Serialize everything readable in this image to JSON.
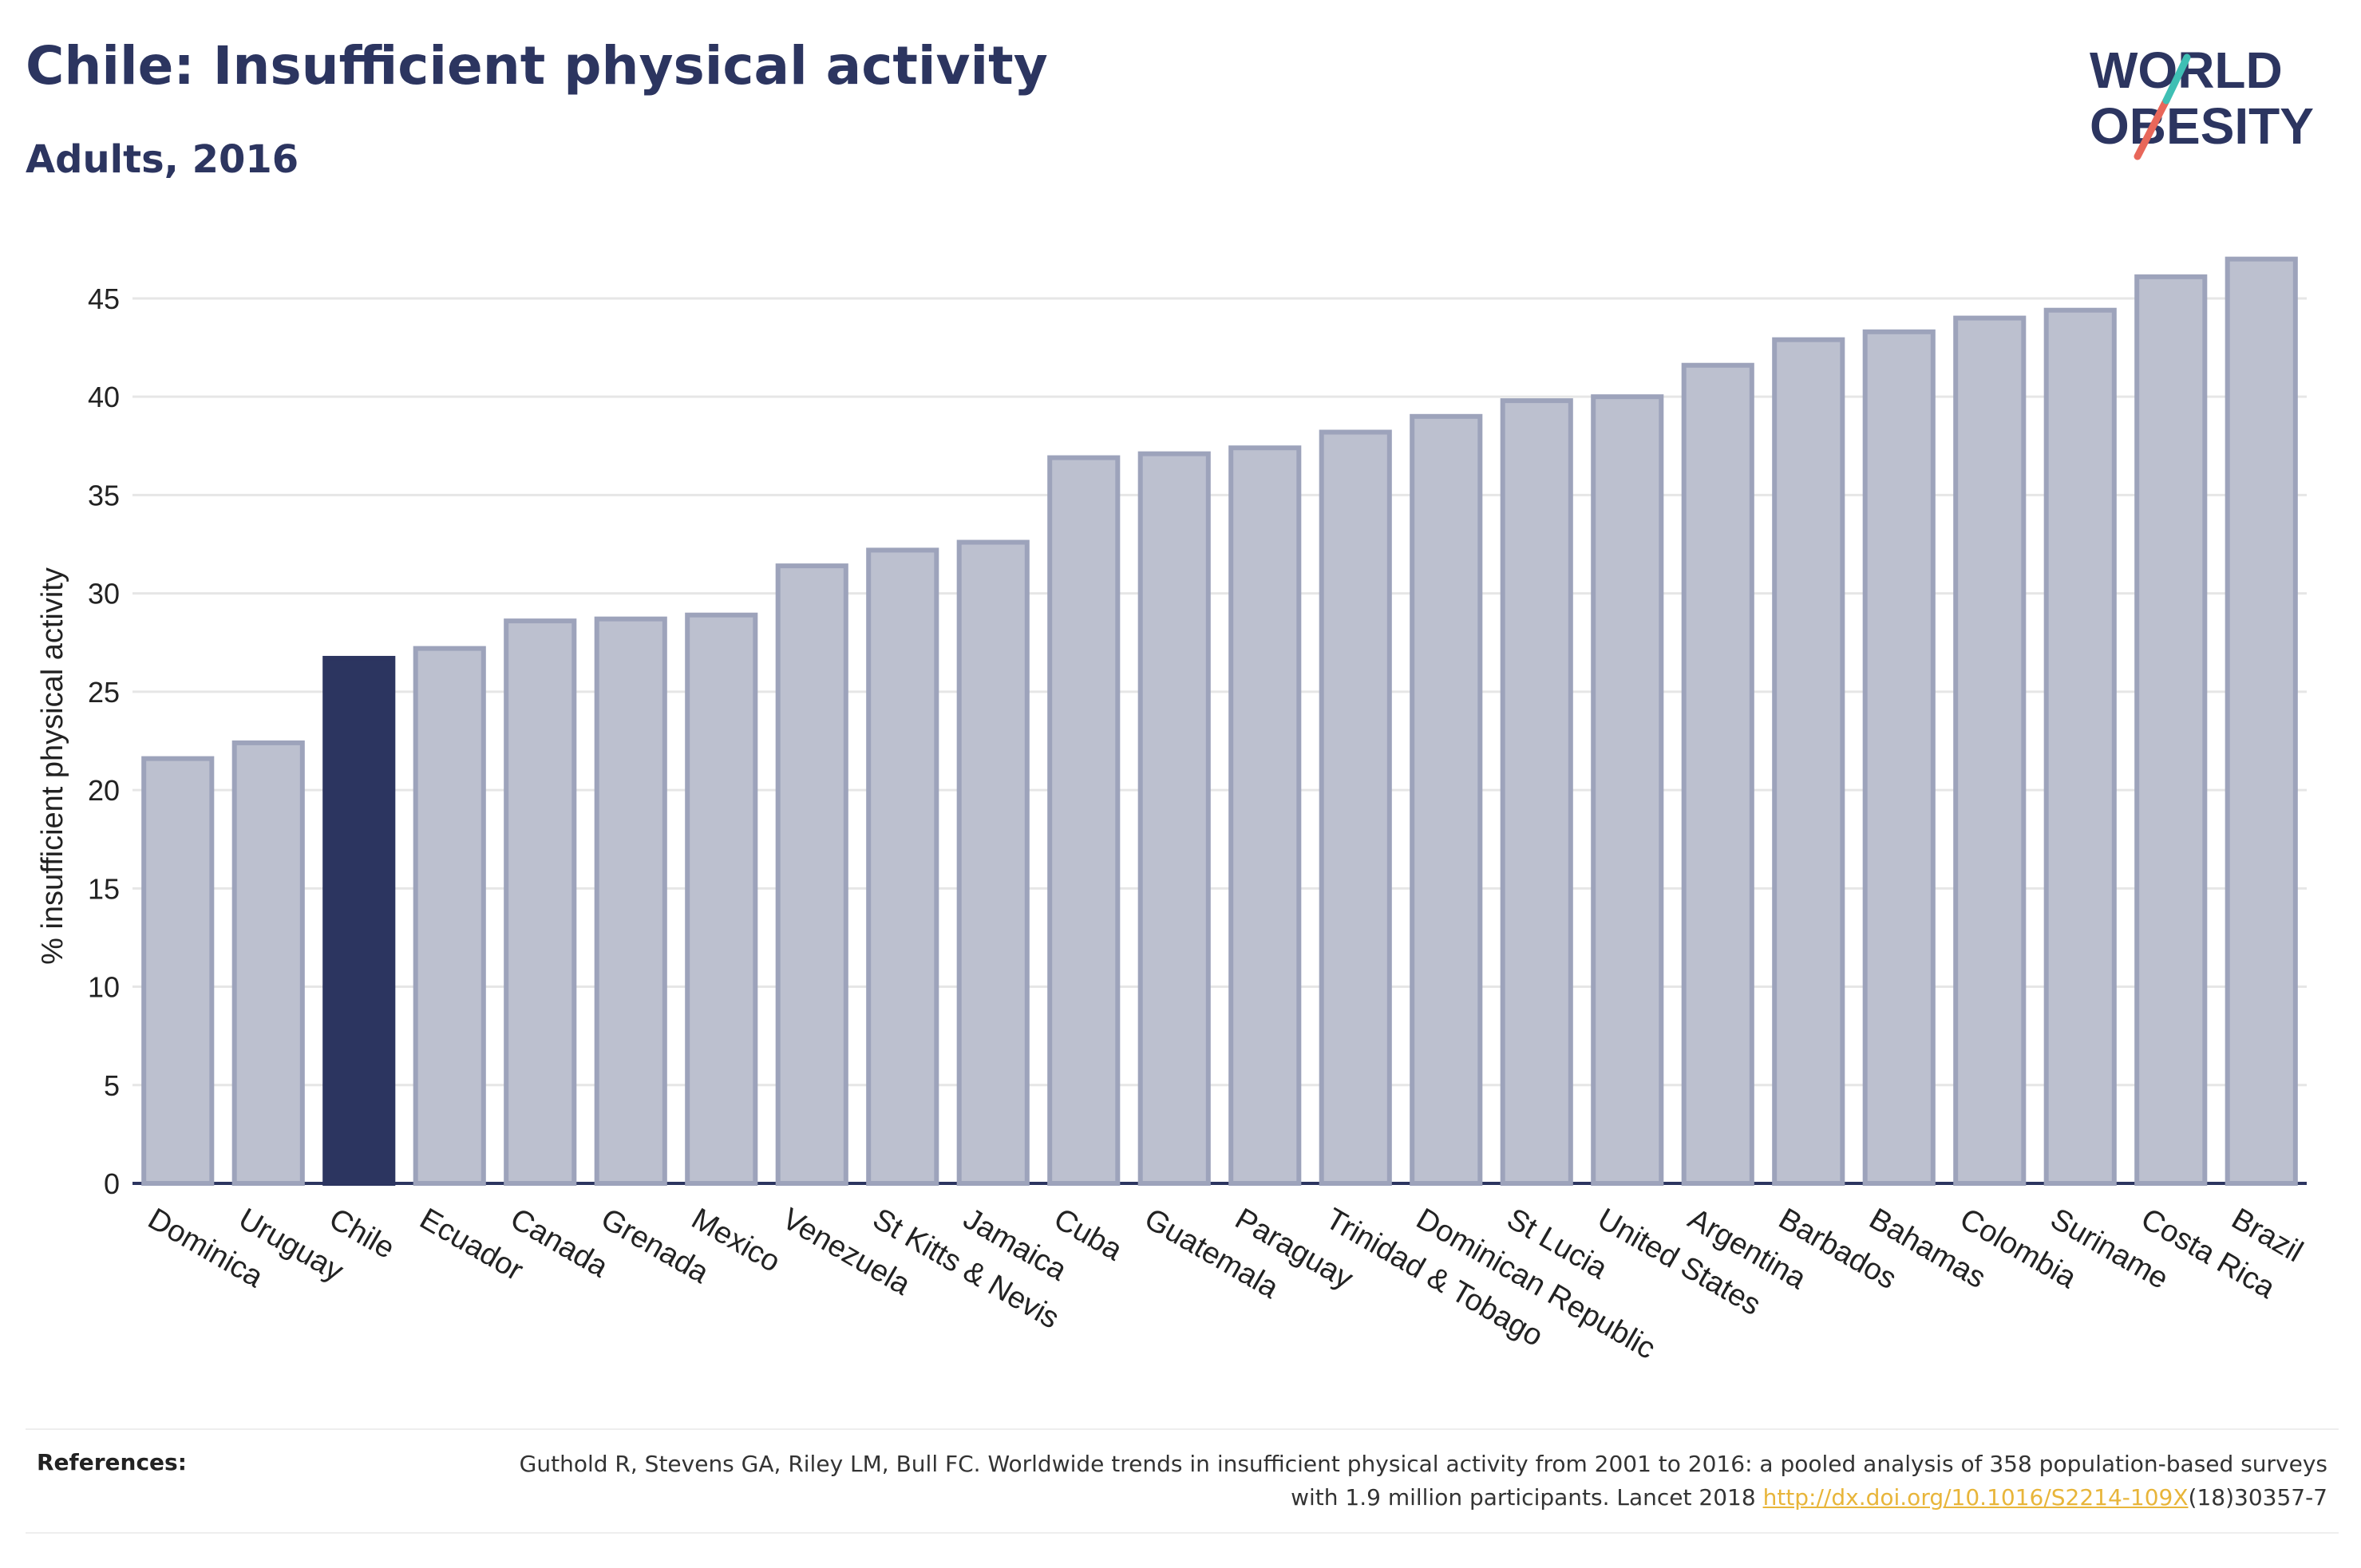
{
  "header": {
    "title": "Chile: Insufficient physical activity",
    "subtitle": "Adults, 2016"
  },
  "logo": {
    "line1": "WORLD",
    "line2": "OBESITY",
    "accent_teal": "#3fbfb4",
    "accent_red": "#e8675a"
  },
  "references": {
    "label": "References:",
    "text_part1": "Guthold R, Stevens GA, Riley LM, Bull FC. Worldwide trends in insufficient physical activity from 2001 to 2016: a pooled analysis of 358 population-based surveys with 1.9 million participants. Lancet 2018 ",
    "link": "http://dx.doi.org/10.1016/S2214-109X",
    "text_part2": "(18)30357-7"
  },
  "chart_data": {
    "type": "bar",
    "ylabel": "% insufficient physical activity",
    "xlabel": "",
    "ylim": [
      0,
      48
    ],
    "yticks": [
      0,
      5,
      10,
      15,
      20,
      25,
      30,
      35,
      40,
      45
    ],
    "grid": true,
    "categories": [
      "Dominica",
      "Uruguay",
      "Chile",
      "Ecuador",
      "Canada",
      "Grenada",
      "Mexico",
      "Venezuela",
      "St Kitts & Nevis",
      "Jamaica",
      "Cuba",
      "Guatemala",
      "Paraguay",
      "Trinidad & Tobago",
      "Dominican Republic",
      "St Lucia",
      "United States",
      "Argentina",
      "Barbados",
      "Bahamas",
      "Colombia",
      "Suriname",
      "Costa Rica",
      "Brazil"
    ],
    "values": [
      21.6,
      22.4,
      26.7,
      27.2,
      28.6,
      28.7,
      28.9,
      31.4,
      32.2,
      32.6,
      36.9,
      37.1,
      37.4,
      38.2,
      39.0,
      39.8,
      40.0,
      41.6,
      42.9,
      43.3,
      44.0,
      44.4,
      46.1,
      47.0
    ],
    "highlight": "Chile",
    "colors": {
      "bar": "#bcc0cf",
      "bar_border": "#9da3bb",
      "highlight": "#2c3560",
      "grid": "#e6e6e6",
      "axis": "#2c3560"
    }
  }
}
